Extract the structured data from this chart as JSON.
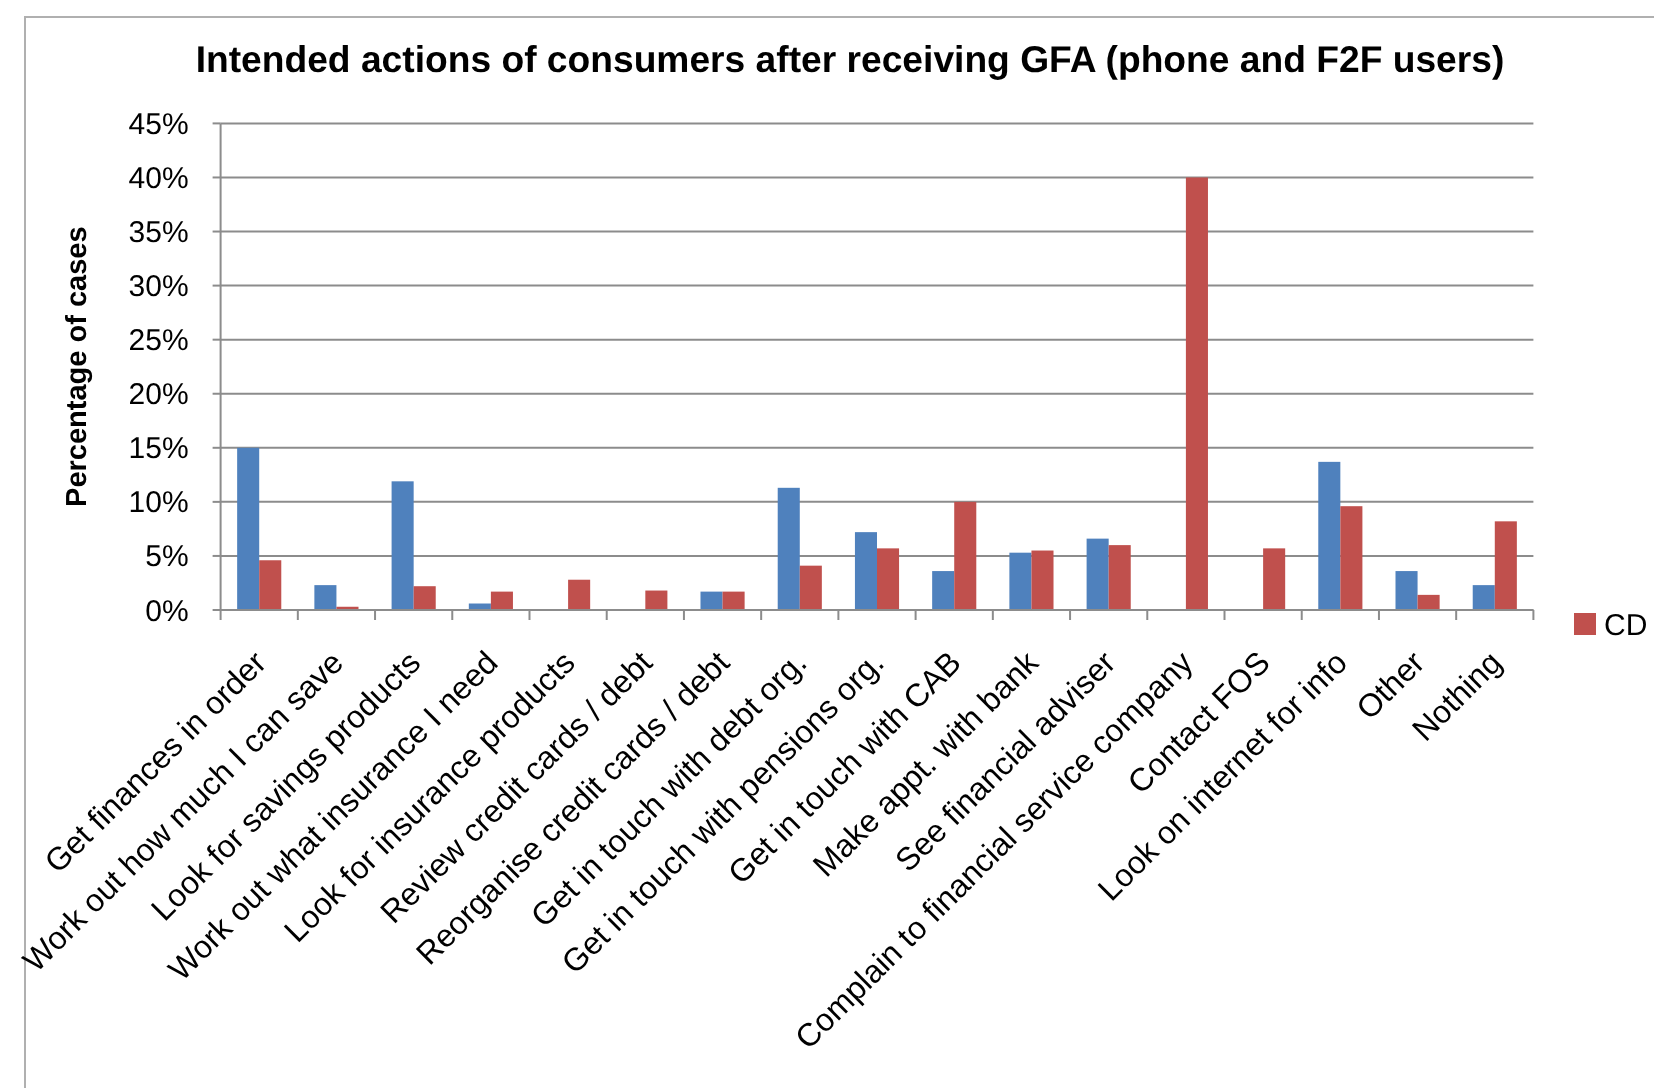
{
  "chart_data": {
    "type": "bar",
    "title": "Intended actions of consumers after receiving GFA (phone and F2F users)",
    "ylabel": "Percentage of cases",
    "categories": [
      "Get finances in order",
      "Work out how much I can save",
      "Look for savings products",
      "Work out what insurance I need",
      "Look for insurance products",
      "Review credit cards / debt",
      "Reorganise credit cards / debt",
      "Get in touch with debt org.",
      "Get in touch with pensions org.",
      "Get in touch with CAB",
      "Make appt. with bank",
      "See financial adviser",
      "Complain to financial service company",
      "Contact FOS",
      "Look on internet for info",
      "Other",
      "Nothing"
    ],
    "series": [
      {
        "color": "#4f81bd",
        "values": [
          15,
          2.3,
          11.9,
          0.6,
          null,
          null,
          1.7,
          11.3,
          7.2,
          3.6,
          5.3,
          6.6,
          null,
          null,
          13.7,
          3.6,
          2.3
        ]
      },
      {
        "name": "CD",
        "color": "#c0504d",
        "values": [
          4.6,
          0.3,
          2.2,
          1.7,
          2.8,
          1.8,
          1.7,
          4.1,
          5.7,
          10.0,
          5.5,
          6.0,
          40,
          5.7,
          9.6,
          1.4,
          8.2
        ]
      }
    ],
    "ylim": [
      0,
      45
    ],
    "yticks": [
      {
        "value": 0,
        "label": "0%"
      },
      {
        "value": 5,
        "label": "5%"
      },
      {
        "value": 10,
        "label": "10%"
      },
      {
        "value": 15,
        "label": "15%"
      },
      {
        "value": 20,
        "label": "20%"
      },
      {
        "value": 25,
        "label": "25%"
      },
      {
        "value": 30,
        "label": "30%"
      },
      {
        "value": 35,
        "label": "35%"
      },
      {
        "value": 40,
        "label": "40%"
      },
      {
        "value": 45,
        "label": "45%"
      }
    ],
    "grid": "y",
    "legend": "right"
  }
}
